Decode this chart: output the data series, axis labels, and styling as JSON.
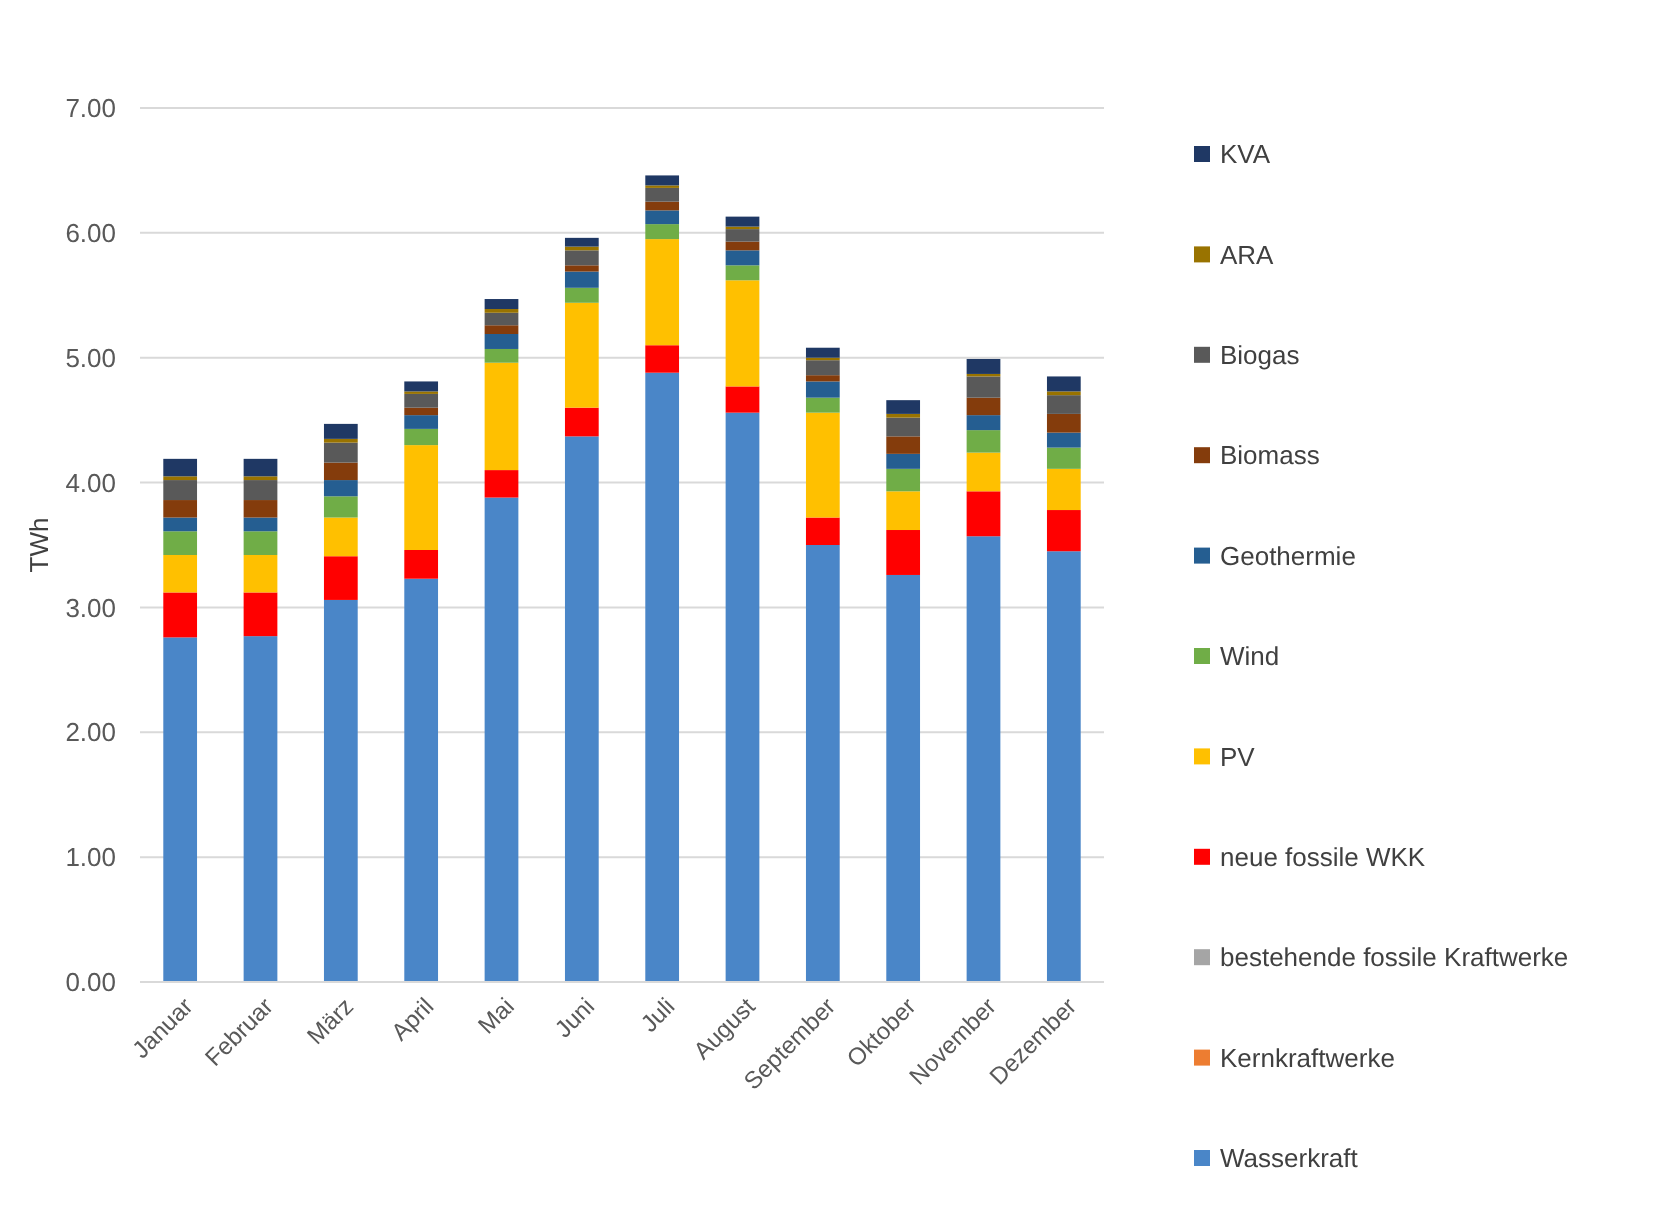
{
  "chart_data": {
    "type": "bar",
    "stacked": true,
    "ylabel": "TWh",
    "categories": [
      "Januar",
      "Februar",
      "März",
      "April",
      "Mai",
      "Juni",
      "Juli",
      "August",
      "September",
      "Oktober",
      "November",
      "Dezember"
    ],
    "ylim": [
      0,
      7
    ],
    "yticks": [
      {
        "value": 0,
        "label": "0.00"
      },
      {
        "value": 1,
        "label": "1.00"
      },
      {
        "value": 2,
        "label": "2.00"
      },
      {
        "value": 3,
        "label": "3.00"
      },
      {
        "value": 4,
        "label": "4.00"
      },
      {
        "value": 5,
        "label": "5.00"
      },
      {
        "value": 6,
        "label": "6.00"
      },
      {
        "value": 7,
        "label": "7.00"
      }
    ],
    "grid": "y",
    "legend": "right",
    "series": [
      {
        "name": "Wasserkraft",
        "color": "#4a86c8",
        "values": [
          2.76,
          2.77,
          3.06,
          3.23,
          3.88,
          4.37,
          4.88,
          4.56,
          3.5,
          3.26,
          3.57,
          3.45
        ]
      },
      {
        "name": "Kernkraftwerke",
        "color": "#ed7d31",
        "values": [
          0,
          0,
          0,
          0,
          0,
          0,
          0,
          0,
          0,
          0,
          0,
          0
        ]
      },
      {
        "name": "bestehende fossile Kraftwerke",
        "color": "#a5a5a5",
        "values": [
          0,
          0,
          0,
          0,
          0,
          0,
          0,
          0,
          0,
          0,
          0,
          0
        ]
      },
      {
        "name": "neue fossile WKK",
        "color": "#ff0000",
        "values": [
          0.36,
          0.35,
          0.35,
          0.23,
          0.22,
          0.23,
          0.22,
          0.21,
          0.22,
          0.36,
          0.36,
          0.33
        ]
      },
      {
        "name": "PV",
        "color": "#ffc000",
        "values": [
          0.3,
          0.3,
          0.31,
          0.84,
          0.86,
          0.84,
          0.85,
          0.85,
          0.84,
          0.31,
          0.31,
          0.33
        ]
      },
      {
        "name": "Wind",
        "color": "#70ad47",
        "values": [
          0.19,
          0.19,
          0.17,
          0.13,
          0.11,
          0.12,
          0.12,
          0.12,
          0.12,
          0.18,
          0.18,
          0.17
        ]
      },
      {
        "name": "Geothermie",
        "color": "#255e91",
        "values": [
          0.11,
          0.11,
          0.13,
          0.11,
          0.12,
          0.13,
          0.11,
          0.12,
          0.13,
          0.12,
          0.12,
          0.12
        ]
      },
      {
        "name": "Biomass",
        "color": "#843c0c",
        "values": [
          0.14,
          0.14,
          0.14,
          0.06,
          0.07,
          0.05,
          0.07,
          0.07,
          0.05,
          0.14,
          0.14,
          0.15
        ]
      },
      {
        "name": "Biogas",
        "color": "#595959",
        "values": [
          0.16,
          0.16,
          0.16,
          0.11,
          0.1,
          0.12,
          0.11,
          0.1,
          0.12,
          0.15,
          0.17,
          0.15
        ]
      },
      {
        "name": "ARA",
        "color": "#997300",
        "values": [
          0.03,
          0.03,
          0.03,
          0.02,
          0.03,
          0.03,
          0.02,
          0.02,
          0.02,
          0.03,
          0.02,
          0.03
        ]
      },
      {
        "name": "KVA",
        "color": "#1f3864",
        "values": [
          0.14,
          0.14,
          0.12,
          0.08,
          0.08,
          0.07,
          0.08,
          0.08,
          0.08,
          0.11,
          0.12,
          0.12
        ]
      }
    ]
  }
}
